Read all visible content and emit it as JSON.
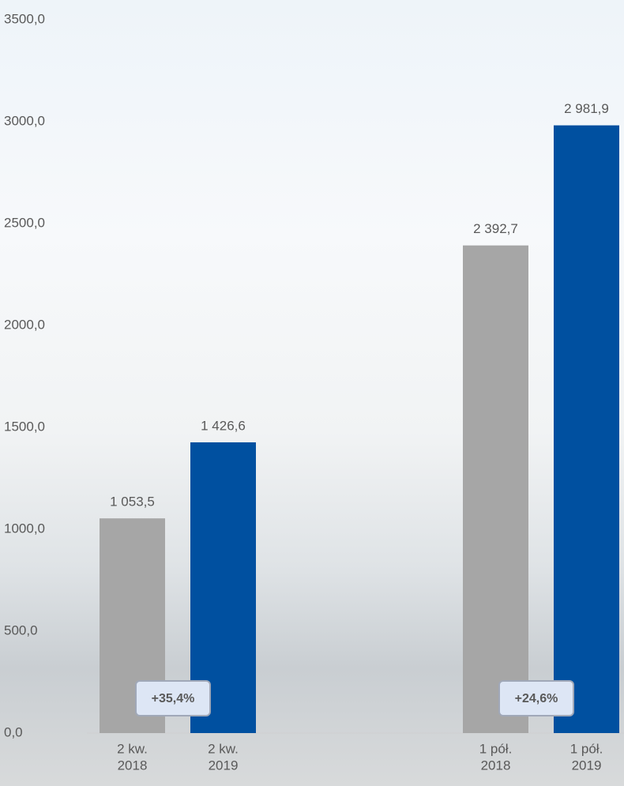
{
  "chart_data": {
    "type": "bar",
    "categories": [
      [
        "2 kw.",
        "2018"
      ],
      [
        "2 kw.",
        "2019"
      ],
      null,
      null,
      [
        "1 pół.",
        "2018"
      ],
      [
        "1 pół.",
        "2019"
      ]
    ],
    "values": [
      1053.5,
      1426.6,
      null,
      null,
      2392.7,
      2981.9
    ],
    "value_labels": [
      "1 053,5",
      "1 426,6",
      null,
      null,
      "2 392,7",
      "2 981,9"
    ],
    "colors": [
      "#a6a6a6",
      "#0050a0",
      null,
      null,
      "#a6a6a6",
      "#0050a0"
    ],
    "ylim": [
      0,
      3500
    ],
    "yticks": [
      {
        "value": 0,
        "label": "0,0"
      },
      {
        "value": 500,
        "label": "500,0"
      },
      {
        "value": 1000,
        "label": "1000,0"
      },
      {
        "value": 1500,
        "label": "1500,0"
      },
      {
        "value": 2000,
        "label": "2000,0"
      },
      {
        "value": 2500,
        "label": "2500,0"
      },
      {
        "value": 3000,
        "label": "3000,0"
      },
      {
        "value": 3500,
        "label": "3500,0"
      }
    ],
    "annotations": [
      "+35,4%",
      "+24,6%"
    ]
  }
}
